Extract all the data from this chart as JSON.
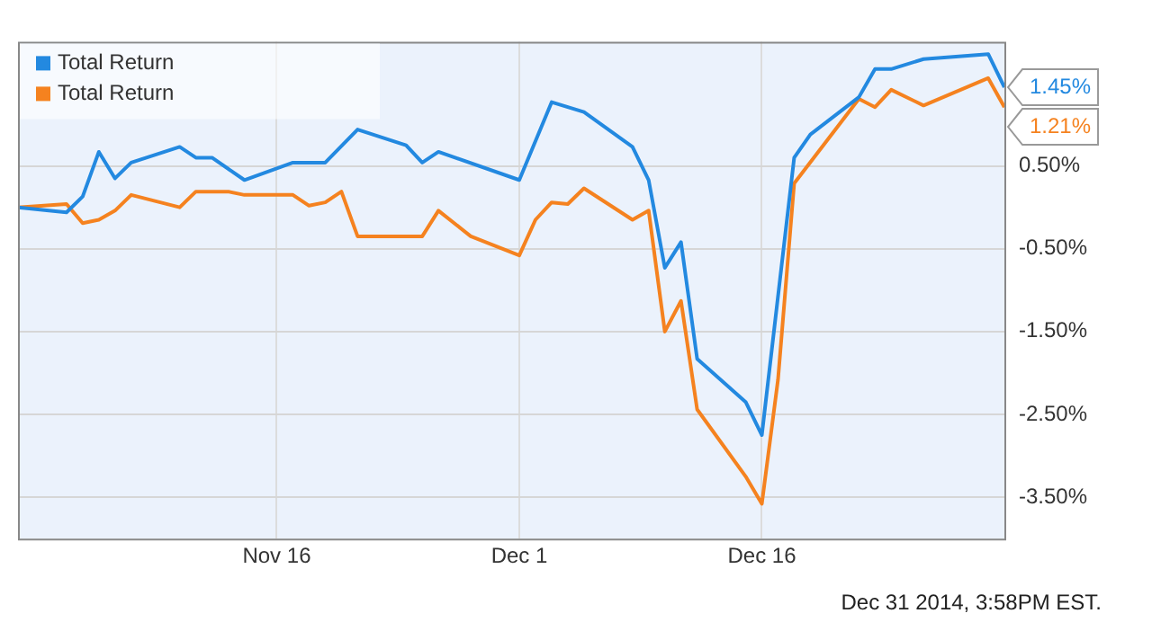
{
  "chart_data": {
    "type": "line",
    "xlim": [
      "2014-10-31",
      "2014-12-31"
    ],
    "xticks": [
      {
        "value": "2014-11-16",
        "label": "Nov 16"
      },
      {
        "value": "2014-12-01",
        "label": "Dec 1"
      },
      {
        "value": "2014-12-16",
        "label": "Dec 16"
      }
    ],
    "ylim": [
      -4,
      2
    ],
    "yticks": [
      {
        "value": 0.5,
        "label": "0.50%"
      },
      {
        "value": -0.5,
        "label": "-0.50%"
      },
      {
        "value": -1.5,
        "label": "-1.50%"
      },
      {
        "value": -2.5,
        "label": "-2.50%"
      },
      {
        "value": -3.5,
        "label": "-3.50%"
      }
    ],
    "grid": true,
    "legend": "top left",
    "marker": "none",
    "line_style": "solid",
    "series": [
      {
        "name": "Total Return",
        "color": "#2389e0",
        "x": [
          "2014-10-31",
          "2014-11-03",
          "2014-11-04",
          "2014-11-05",
          "2014-11-06",
          "2014-11-07",
          "2014-11-10",
          "2014-11-11",
          "2014-11-12",
          "2014-11-14",
          "2014-11-17",
          "2014-11-19",
          "2014-11-21",
          "2014-11-24",
          "2014-11-25",
          "2014-11-26",
          "2014-12-01",
          "2014-12-03",
          "2014-12-05",
          "2014-12-08",
          "2014-12-09",
          "2014-12-10",
          "2014-12-11",
          "2014-12-12",
          "2014-12-15",
          "2014-12-16",
          "2014-12-18",
          "2014-12-19",
          "2014-12-22",
          "2014-12-23",
          "2014-12-24",
          "2014-12-26",
          "2014-12-30",
          "2014-12-31"
        ],
        "values": [
          0,
          -0.06,
          0.13,
          0.67,
          0.35,
          0.54,
          0.73,
          0.6,
          0.6,
          0.33,
          0.54,
          0.54,
          0.94,
          0.75,
          0.54,
          0.67,
          0.33,
          1.27,
          1.15,
          0.73,
          0.33,
          -0.73,
          -0.42,
          -1.83,
          -2.35,
          -2.75,
          0.6,
          0.88,
          1.33,
          1.67,
          1.67,
          1.79,
          1.85,
          1.45
        ],
        "value_labels": [
          null,
          null,
          null,
          null,
          null,
          null,
          null,
          null,
          null,
          null,
          null,
          null,
          null,
          null,
          null,
          null,
          null,
          null,
          null,
          null,
          null,
          null,
          null,
          null,
          null,
          null,
          null,
          null,
          null,
          null,
          null,
          null,
          null,
          "1.45%"
        ]
      },
      {
        "name": "Total Return",
        "color": "#f5821f",
        "x": [
          "2014-10-31",
          "2014-11-03",
          "2014-11-04",
          "2014-11-05",
          "2014-11-06",
          "2014-11-07",
          "2014-11-10",
          "2014-11-11",
          "2014-11-13",
          "2014-11-14",
          "2014-11-17",
          "2014-11-18",
          "2014-11-19",
          "2014-11-20",
          "2014-11-21",
          "2014-11-25",
          "2014-11-26",
          "2014-11-28",
          "2014-12-01",
          "2014-12-02",
          "2014-12-03",
          "2014-12-04",
          "2014-12-05",
          "2014-12-08",
          "2014-12-09",
          "2014-12-10",
          "2014-12-11",
          "2014-12-12",
          "2014-12-15",
          "2014-12-16",
          "2014-12-17",
          "2014-12-18",
          "2014-12-22",
          "2014-12-23",
          "2014-12-24",
          "2014-12-26",
          "2014-12-30",
          "2014-12-31"
        ],
        "values": [
          0,
          0.04,
          -0.19,
          -0.15,
          -0.04,
          0.15,
          0,
          0.19,
          0.19,
          0.15,
          0.15,
          0.02,
          0.06,
          0.19,
          -0.35,
          -0.35,
          -0.04,
          -0.35,
          -0.58,
          -0.15,
          0.06,
          0.04,
          0.23,
          -0.15,
          -0.04,
          -1.5,
          -1.13,
          -2.44,
          -3.25,
          -3.58,
          -2.08,
          0.29,
          1.31,
          1.21,
          1.42,
          1.23,
          1.56,
          1.21
        ],
        "value_labels": [
          null,
          null,
          null,
          null,
          null,
          null,
          null,
          null,
          null,
          null,
          null,
          null,
          null,
          null,
          null,
          null,
          null,
          null,
          null,
          null,
          null,
          null,
          null,
          null,
          null,
          null,
          null,
          null,
          null,
          null,
          null,
          null,
          null,
          null,
          null,
          null,
          null,
          "1.21%"
        ]
      }
    ],
    "annotations": [
      "Dec 31 2014, 3:58PM EST."
    ]
  }
}
